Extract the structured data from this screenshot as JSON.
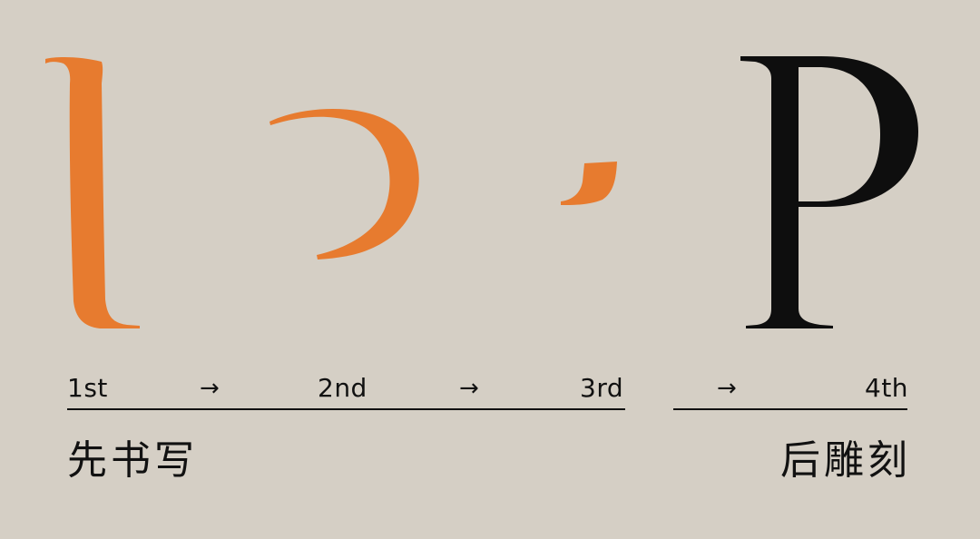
{
  "colors": {
    "background": "#d5cfc5",
    "stroke_orange": "#e77b2f",
    "final_glyph": "#0e0e0e",
    "text": "#111111"
  },
  "steps": [
    {
      "label": "1st"
    },
    {
      "label": "2nd"
    },
    {
      "label": "3rd"
    },
    {
      "label": "4th"
    }
  ],
  "arrow": "→",
  "captions": {
    "left": "先书写",
    "right": "后雕刻"
  }
}
